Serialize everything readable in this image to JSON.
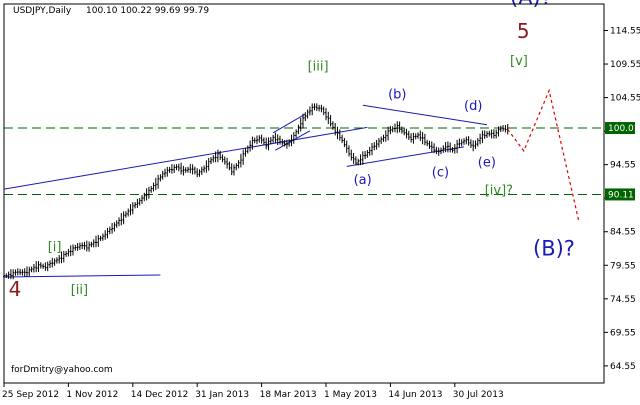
{
  "header": {
    "symbol": "USDJPY,Daily",
    "ohlc": "100.10 100.22 99.69 99.79"
  },
  "watermark": "forDmitry@yahoo.com",
  "chart_data": {
    "type": "candlestick",
    "symbol": "USDJPY",
    "timeframe": "Daily",
    "ylim": [
      62.0,
      118.5
    ],
    "y_ticks": [
      {
        "value": 114.55,
        "label": "114.55"
      },
      {
        "value": 109.55,
        "label": "109.55"
      },
      {
        "value": 104.55,
        "label": "104.55"
      },
      {
        "value": 99.55,
        "label": ""
      },
      {
        "value": 94.55,
        "label": "94.55"
      },
      {
        "value": 89.55,
        "label": ""
      },
      {
        "value": 84.55,
        "label": "84.55"
      },
      {
        "value": 79.55,
        "label": "79.55"
      },
      {
        "value": 74.55,
        "label": "74.55"
      },
      {
        "value": 69.55,
        "label": "69.55"
      },
      {
        "value": 64.55,
        "label": "64.55"
      }
    ],
    "x_ticks": [
      "25 Sep 2012",
      "1 Nov 2012",
      "14 Dec 2012",
      "31 Jan 2013",
      "18 Mar 2013",
      "1 May 2013",
      "14 Jun 2013",
      "30 Jul 2013"
    ],
    "price_labels": [
      {
        "value": 100.01,
        "label": "100.01",
        "color": "#006400"
      },
      {
        "value": 90.11,
        "label": "90.11",
        "color": "#006400"
      }
    ],
    "close_path": [
      [
        0,
        77.9
      ],
      [
        3,
        78.2
      ],
      [
        6,
        78.6
      ],
      [
        9,
        78.4
      ],
      [
        12,
        79.0
      ],
      [
        15,
        79.5
      ],
      [
        18,
        79.3
      ],
      [
        21,
        80.0
      ],
      [
        24,
        80.5
      ],
      [
        27,
        81.3
      ],
      [
        30,
        82.0
      ],
      [
        33,
        82.5
      ],
      [
        36,
        82.3
      ],
      [
        39,
        82.9
      ],
      [
        42,
        83.6
      ],
      [
        45,
        84.5
      ],
      [
        48,
        85.5
      ],
      [
        51,
        86.5
      ],
      [
        54,
        87.6
      ],
      [
        57,
        88.6
      ],
      [
        60,
        89.5
      ],
      [
        63,
        90.6
      ],
      [
        66,
        91.8
      ],
      [
        69,
        93.2
      ],
      [
        72,
        93.8
      ],
      [
        75,
        94.2
      ],
      [
        78,
        93.6
      ],
      [
        81,
        94.0
      ],
      [
        84,
        93.2
      ],
      [
        87,
        94.0
      ],
      [
        90,
        95.3
      ],
      [
        93,
        96.0
      ],
      [
        96,
        95.0
      ],
      [
        99,
        93.6
      ],
      [
        102,
        94.8
      ],
      [
        105,
        96.6
      ],
      [
        108,
        98.0
      ],
      [
        111,
        98.5
      ],
      [
        114,
        97.5
      ],
      [
        117,
        98.6
      ],
      [
        120,
        98.0
      ],
      [
        123,
        97.5
      ],
      [
        126,
        98.8
      ],
      [
        129,
        100.8
      ],
      [
        132,
        102.4
      ],
      [
        135,
        103.2
      ],
      [
        138,
        102.8
      ],
      [
        141,
        101.3
      ],
      [
        144,
        99.5
      ],
      [
        147,
        98.2
      ],
      [
        150,
        96.2
      ],
      [
        153,
        94.8
      ],
      [
        156,
        95.7
      ],
      [
        159,
        96.7
      ],
      [
        162,
        97.7
      ],
      [
        165,
        98.6
      ],
      [
        168,
        99.8
      ],
      [
        171,
        100.2
      ],
      [
        174,
        99.3
      ],
      [
        177,
        98.4
      ],
      [
        180,
        99.0
      ],
      [
        183,
        98.0
      ],
      [
        186,
        97.0
      ],
      [
        189,
        96.4
      ],
      [
        192,
        97.3
      ],
      [
        195,
        96.7
      ],
      [
        198,
        97.8
      ],
      [
        201,
        98.2
      ],
      [
        204,
        97.2
      ],
      [
        207,
        98.6
      ],
      [
        210,
        99.2
      ],
      [
        213,
        99.0
      ],
      [
        216,
        100.0
      ],
      [
        219,
        99.8
      ]
    ],
    "levels": [
      {
        "value": 100.01,
        "style": "dashed",
        "color": "#006400"
      },
      {
        "value": 90.11,
        "style": "dashed",
        "color": "#006400"
      }
    ],
    "trendlines": [
      {
        "from": [
          0,
          90.9
        ],
        "to": [
          158,
          100.1
        ]
      },
      {
        "from": [
          0,
          77.8
        ],
        "to": [
          68,
          78.1
        ]
      },
      {
        "from": [
          156,
          103.4
        ],
        "to": [
          210,
          100.5
        ]
      },
      {
        "from": [
          149,
          94.3
        ],
        "to": [
          200,
          97.2
        ]
      },
      {
        "from": [
          117,
          99.3
        ],
        "to": [
          131,
          102.1
        ]
      },
      {
        "from": [
          118,
          96.7
        ],
        "to": [
          133,
          99.6
        ]
      }
    ],
    "forecast_path": [
      [
        219,
        99.8
      ],
      [
        226,
        96.6
      ],
      [
        237,
        105.6
      ],
      [
        250,
        86.0
      ]
    ],
    "wave_labels": [
      {
        "text": "4",
        "x": 2,
        "y": 75.0,
        "color": "#8b1a1a"
      },
      {
        "text": "[i]",
        "x": 19,
        "y": 81.7,
        "color": "#2e8b22"
      },
      {
        "text": "[ii]",
        "x": 29,
        "y": 75.3,
        "color": "#2e8b22"
      },
      {
        "text": "[iii]",
        "x": 132,
        "y": 108.6,
        "color": "#2e8b22"
      },
      {
        "text": "(a)",
        "x": 152,
        "y": 91.7,
        "color": "#1a1ab4"
      },
      {
        "text": "(b)",
        "x": 167,
        "y": 104.4,
        "color": "#1a1ab4"
      },
      {
        "text": "(c)",
        "x": 186,
        "y": 92.8,
        "color": "#1a1ab4"
      },
      {
        "text": "(d)",
        "x": 200,
        "y": 102.7,
        "color": "#1a1ab4"
      },
      {
        "text": "(e)",
        "x": 206,
        "y": 94.3,
        "color": "#1a1ab4"
      },
      {
        "text": "[iv]?",
        "x": 209,
        "y": 90.1,
        "color": "#2e8b22"
      },
      {
        "text": "[v]",
        "x": 220,
        "y": 109.4,
        "color": "#2e8b22"
      },
      {
        "text": "5",
        "x": 223,
        "y": 113.4,
        "color": "#8b1a1a"
      },
      {
        "text": "(A)?",
        "x": 220,
        "y": 118.4,
        "color": "#1a1ab4"
      },
      {
        "text": "(B)?",
        "x": 230,
        "y": 81.0,
        "color": "#1a1ab4"
      }
    ]
  }
}
